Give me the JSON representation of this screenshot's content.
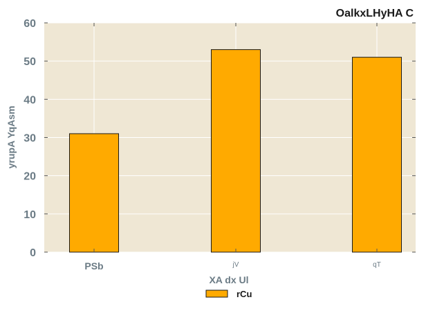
{
  "colors": {
    "plot_background": "#efe7d4",
    "bar_fill": "#ffaa00",
    "bar_edge": "#1a1a1a",
    "grid": "#ffffff",
    "tick_text": "#6b7b85",
    "title_text": "#1a1a1a"
  },
  "chart_data": {
    "type": "bar",
    "title": "OalkxLHyHA C",
    "xlabel": "XA dx  Ul",
    "ylabel": "yrupA YqAsm",
    "categories": [
      "PSb",
      "jV",
      "qT"
    ],
    "series": [
      {
        "name": "rCu",
        "values": [
          31,
          53,
          51
        ]
      }
    ],
    "ylim": [
      0,
      60
    ],
    "yticks": [
      0,
      10,
      20,
      30,
      40,
      50,
      60
    ],
    "grid": true,
    "legend_position": "bottom-center"
  }
}
